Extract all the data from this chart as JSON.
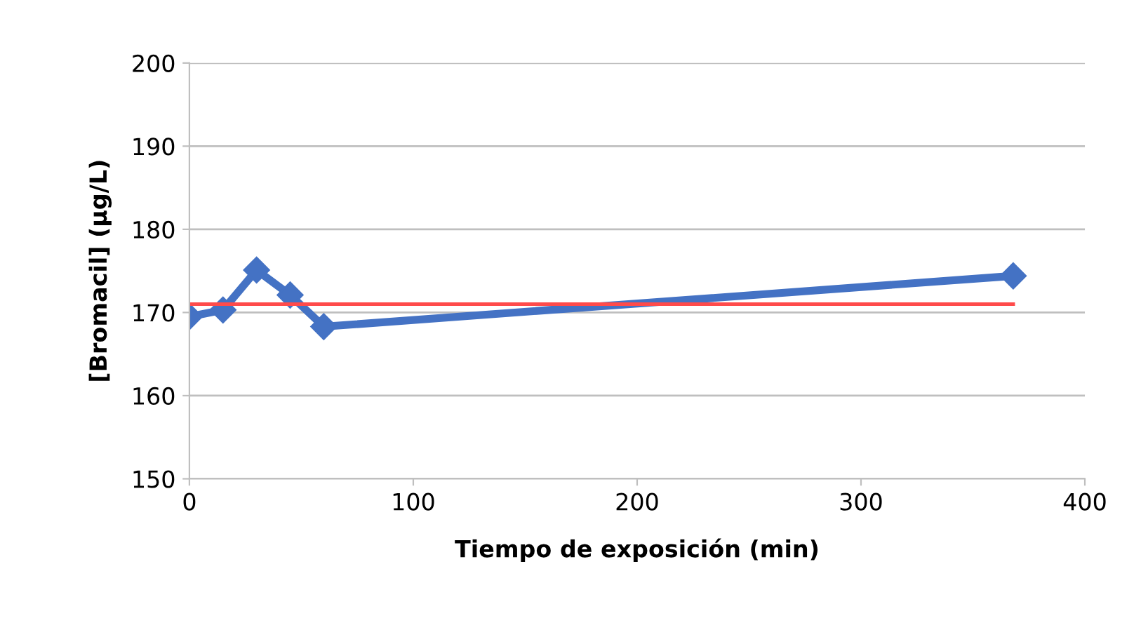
{
  "chart_data": {
    "type": "line",
    "xlabel": "Tiempo de exposición (min)",
    "ylabel": "[Bromacil] (µg/L)",
    "series": [
      {
        "color": "#4472c4",
        "x": [
          0,
          15,
          30,
          45,
          60,
          368
        ],
        "values": [
          169.5,
          170.3,
          175.1,
          172.1,
          168.3,
          174.4
        ],
        "marker": "diamond"
      },
      {
        "color": "#ff4b4b",
        "x": [
          0,
          368
        ],
        "values": [
          171,
          171
        ],
        "marker": "none"
      }
    ],
    "xlim": [
      0,
      400
    ],
    "xticks": [
      0,
      100,
      200,
      300,
      400
    ],
    "ylim": [
      150,
      200
    ],
    "yticks": [
      150,
      160,
      170,
      180,
      190,
      200
    ],
    "grid": "y",
    "legend": false
  }
}
